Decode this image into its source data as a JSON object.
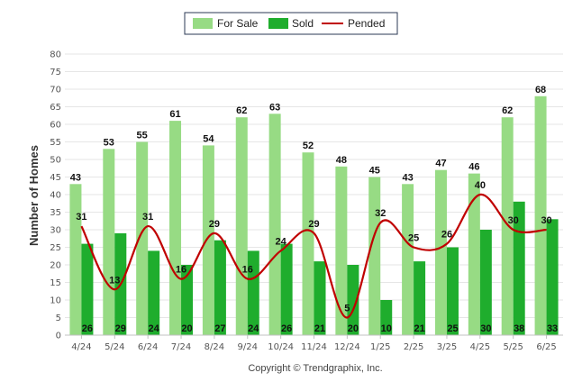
{
  "chart_data": {
    "type": "bar",
    "ylabel": "Number of Homes",
    "ylim": [
      0,
      80
    ],
    "ytick_step": 5,
    "categories": [
      "4/24",
      "5/24",
      "6/24",
      "7/24",
      "8/24",
      "9/24",
      "10/24",
      "11/24",
      "12/24",
      "1/25",
      "2/25",
      "3/25",
      "4/25",
      "5/25",
      "6/25"
    ],
    "series": [
      {
        "name": "For Sale",
        "kind": "bar",
        "color": "#97db84",
        "values": [
          43,
          53,
          55,
          61,
          54,
          62,
          63,
          52,
          48,
          45,
          43,
          47,
          46,
          62,
          68
        ]
      },
      {
        "name": "Sold",
        "kind": "bar",
        "color": "#1fad2d",
        "values": [
          26,
          29,
          24,
          20,
          27,
          24,
          26,
          21,
          20,
          10,
          21,
          25,
          30,
          38,
          33
        ]
      },
      {
        "name": "Pended",
        "kind": "line",
        "color": "#c00000",
        "values": [
          31,
          13,
          31,
          16,
          29,
          16,
          24,
          29,
          5,
          32,
          25,
          26,
          40,
          30,
          30
        ]
      }
    ],
    "legend": "top-center",
    "grid": true,
    "credit": "Copyright © Trendgraphix, Inc."
  }
}
